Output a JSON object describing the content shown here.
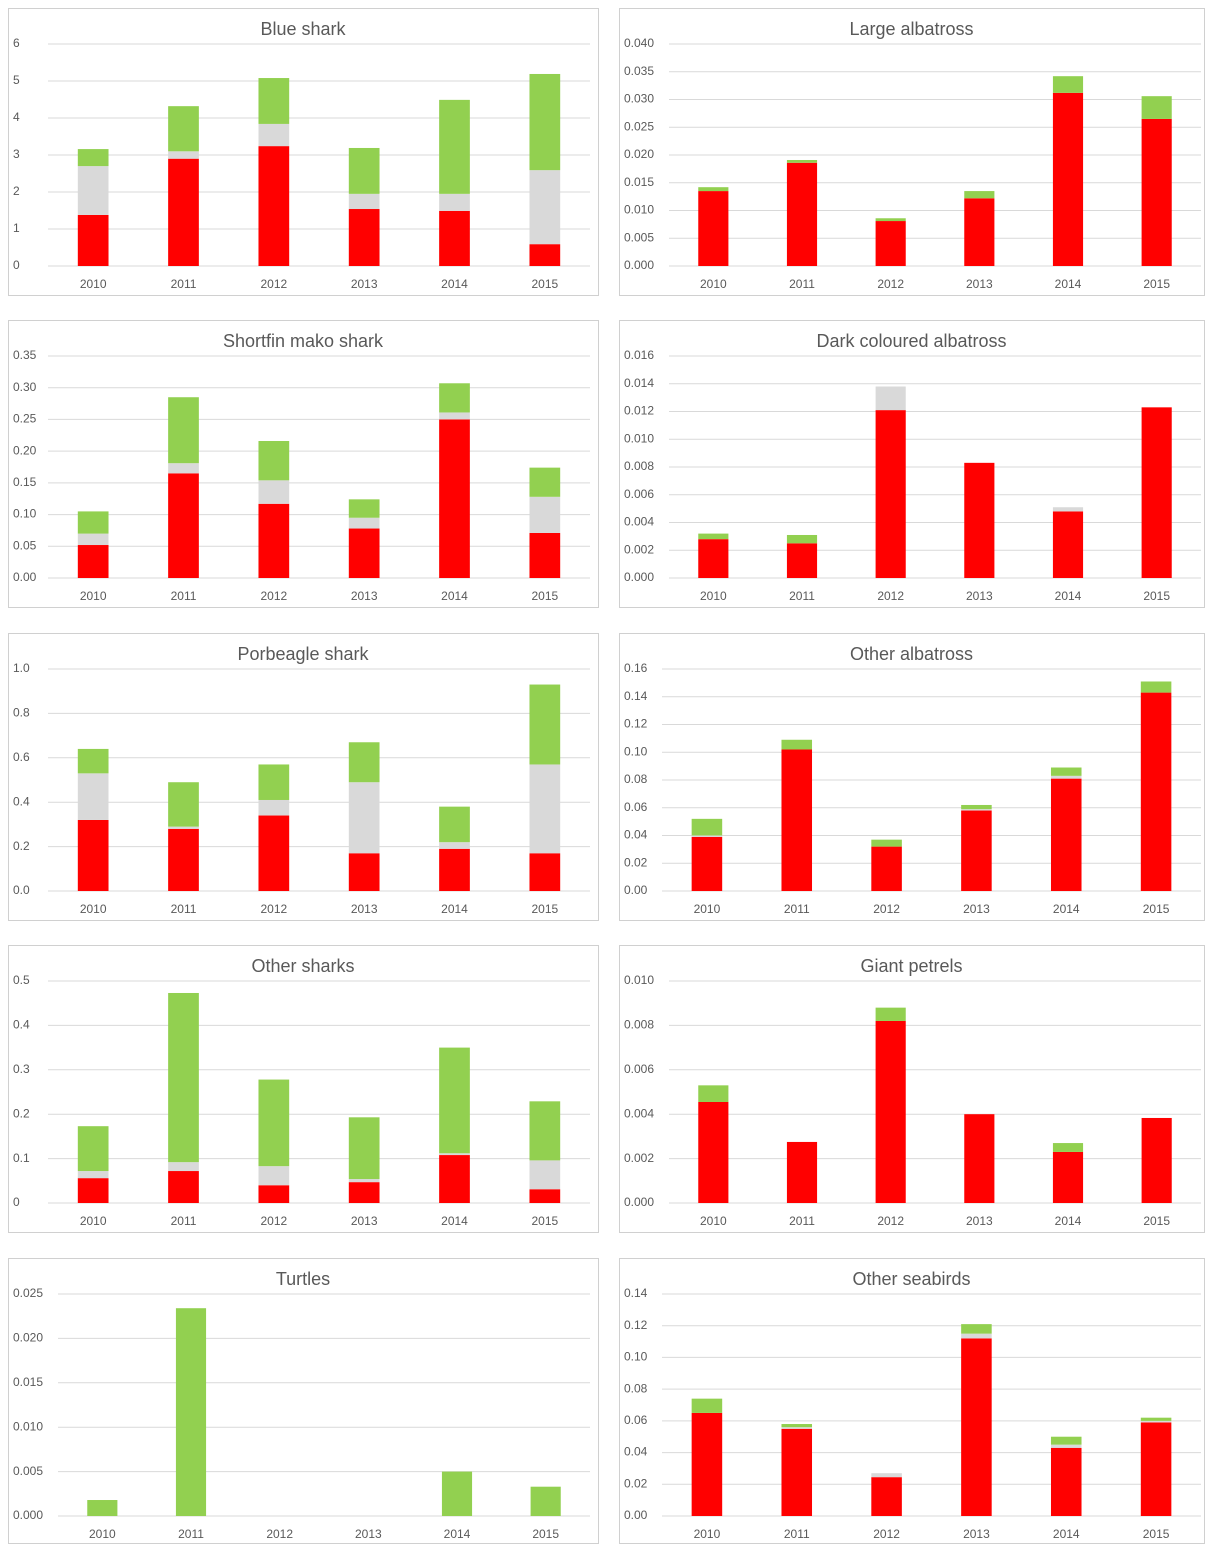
{
  "chart_data": [
    {
      "type": "bar",
      "title": "Blue shark",
      "categories": [
        "2010",
        "2011",
        "2012",
        "2013",
        "2014",
        "2015"
      ],
      "series": [
        {
          "color": "#ff0000",
          "values": [
            1.38,
            2.9,
            3.24,
            1.54,
            1.49,
            0.59
          ]
        },
        {
          "color": "#d9d9d9",
          "values": [
            1.32,
            0.2,
            0.6,
            0.41,
            0.46,
            2.0
          ]
        },
        {
          "color": "#92d050",
          "values": [
            0.46,
            1.22,
            1.24,
            1.24,
            2.54,
            2.6
          ]
        }
      ],
      "ylim": [
        0,
        6
      ],
      "yticks": [
        0,
        1,
        2,
        3,
        4,
        5,
        6
      ],
      "grid": true
    },
    {
      "type": "bar",
      "title": "Large albatross",
      "categories": [
        "2010",
        "2011",
        "2012",
        "2013",
        "2014",
        "2015"
      ],
      "series": [
        {
          "color": "#ff0000",
          "values": [
            0.0135,
            0.0186,
            0.0081,
            0.0122,
            0.0312,
            0.0265
          ]
        },
        {
          "color": "#d9d9d9",
          "values": [
            0,
            0,
            0,
            0,
            0,
            0
          ]
        },
        {
          "color": "#92d050",
          "values": [
            0.0007,
            0.0005,
            0.0005,
            0.0013,
            0.003,
            0.0041
          ]
        }
      ],
      "ylim": [
        0,
        0.04
      ],
      "yticks": [
        {
          "value": 0,
          "label": "0.000"
        },
        0.005,
        {
          "value": 0.01,
          "label": "0.010"
        },
        0.015,
        {
          "value": 0.02,
          "label": "0.020"
        },
        0.025,
        {
          "value": 0.03,
          "label": "0.030"
        },
        0.035,
        {
          "value": 0.04,
          "label": "0.040"
        }
      ],
      "grid": true
    },
    {
      "type": "bar",
      "title": "Shortfin mako shark",
      "categories": [
        "2010",
        "2011",
        "2012",
        "2013",
        "2014",
        "2015"
      ],
      "series": [
        {
          "color": "#ff0000",
          "values": [
            0.052,
            0.165,
            0.117,
            0.078,
            0.25,
            0.071
          ]
        },
        {
          "color": "#d9d9d9",
          "values": [
            0.018,
            0.016,
            0.037,
            0.017,
            0.011,
            0.057
          ]
        },
        {
          "color": "#92d050",
          "values": [
            0.035,
            0.104,
            0.062,
            0.029,
            0.046,
            0.046
          ]
        }
      ],
      "ylim": [
        0,
        0.35
      ],
      "yticks": [
        {
          "value": 0,
          "label": "0.00"
        },
        0.05,
        {
          "value": 0.1,
          "label": "0.10"
        },
        0.15,
        {
          "value": 0.2,
          "label": "0.20"
        },
        0.25,
        {
          "value": 0.3,
          "label": "0.30"
        },
        0.35
      ],
      "grid": true
    },
    {
      "type": "bar",
      "title": "Dark coloured albatross",
      "categories": [
        "2010",
        "2011",
        "2012",
        "2013",
        "2014",
        "2015"
      ],
      "series": [
        {
          "color": "#ff0000",
          "values": [
            0.0028,
            0.0025,
            0.0121,
            0.0083,
            0.0048,
            0.0123
          ]
        },
        {
          "color": "#d9d9d9",
          "values": [
            0,
            0,
            0.0017,
            0,
            0.0003,
            0
          ]
        },
        {
          "color": "#92d050",
          "values": [
            0.0004,
            0.0006,
            0,
            0,
            0,
            0
          ]
        }
      ],
      "ylim": [
        0,
        0.016
      ],
      "yticks": [
        {
          "value": 0,
          "label": "0.000"
        },
        0.002,
        0.004,
        0.006,
        0.008,
        {
          "value": 0.01,
          "label": "0.010"
        },
        0.012,
        0.014,
        0.016
      ],
      "grid": true
    },
    {
      "type": "bar",
      "title": "Porbeagle shark",
      "categories": [
        "2010",
        "2011",
        "2012",
        "2013",
        "2014",
        "2015"
      ],
      "series": [
        {
          "color": "#ff0000",
          "values": [
            0.32,
            0.28,
            0.34,
            0.17,
            0.19,
            0.17
          ]
        },
        {
          "color": "#d9d9d9",
          "values": [
            0.21,
            0.01,
            0.07,
            0.32,
            0.03,
            0.4
          ]
        },
        {
          "color": "#92d050",
          "values": [
            0.11,
            0.2,
            0.16,
            0.18,
            0.16,
            0.36
          ]
        }
      ],
      "ylim": [
        0,
        1
      ],
      "yticks": [
        {
          "value": 0,
          "label": "0.0"
        },
        0.2,
        0.4,
        0.6,
        0.8,
        {
          "value": 1,
          "label": "1.0"
        }
      ],
      "grid": true
    },
    {
      "type": "bar",
      "title": "Other albatross",
      "categories": [
        "2010",
        "2011",
        "2012",
        "2013",
        "2014",
        "2015"
      ],
      "series": [
        {
          "color": "#ff0000",
          "values": [
            0.039,
            0.102,
            0.032,
            0.058,
            0.081,
            0.143
          ]
        },
        {
          "color": "#d9d9d9",
          "values": [
            0.001,
            0,
            0,
            0.001,
            0.002,
            0
          ]
        },
        {
          "color": "#92d050",
          "values": [
            0.012,
            0.007,
            0.005,
            0.003,
            0.006,
            0.008
          ]
        }
      ],
      "ylim": [
        0,
        0.16
      ],
      "yticks": [
        {
          "value": 0,
          "label": "0.00"
        },
        0.02,
        0.04,
        0.06,
        0.08,
        {
          "value": 0.1,
          "label": "0.10"
        },
        0.12,
        0.14,
        0.16
      ],
      "grid": true
    },
    {
      "type": "bar",
      "title": "Other sharks",
      "categories": [
        "2010",
        "2011",
        "2012",
        "2013",
        "2014",
        "2015"
      ],
      "series": [
        {
          "color": "#ff0000",
          "values": [
            0.056,
            0.072,
            0.04,
            0.047,
            0.108,
            0.031
          ]
        },
        {
          "color": "#d9d9d9",
          "values": [
            0.016,
            0.02,
            0.043,
            0.007,
            0.004,
            0.065
          ]
        },
        {
          "color": "#92d050",
          "values": [
            0.101,
            0.381,
            0.195,
            0.139,
            0.238,
            0.133
          ]
        }
      ],
      "ylim": [
        0,
        0.5
      ],
      "yticks": [
        0,
        0.1,
        0.2,
        0.3,
        0.4,
        0.5
      ],
      "grid": true
    },
    {
      "type": "bar",
      "title": "Giant petrels",
      "categories": [
        "2010",
        "2011",
        "2012",
        "2013",
        "2014",
        "2015"
      ],
      "series": [
        {
          "color": "#ff0000",
          "values": [
            0.00455,
            0.00275,
            0.0082,
            0.004,
            0.0023,
            0.00383
          ]
        },
        {
          "color": "#d9d9d9",
          "values": [
            0,
            0,
            0,
            0,
            0,
            0
          ]
        },
        {
          "color": "#92d050",
          "values": [
            0.00075,
            0,
            0.0006,
            0,
            0.0004,
            0
          ]
        }
      ],
      "ylim": [
        0,
        0.01
      ],
      "yticks": [
        {
          "value": 0,
          "label": "0.000"
        },
        0.002,
        0.004,
        0.006,
        0.008,
        {
          "value": 0.01,
          "label": "0.010"
        }
      ],
      "grid": true
    },
    {
      "type": "bar",
      "title": "Turtles",
      "categories": [
        "2010",
        "2011",
        "2012",
        "2013",
        "2014",
        "2015"
      ],
      "series": [
        {
          "color": "#ff0000",
          "values": [
            0,
            0,
            0,
            0,
            0,
            0
          ]
        },
        {
          "color": "#d9d9d9",
          "values": [
            0,
            0,
            0,
            0,
            0,
            0
          ]
        },
        {
          "color": "#92d050",
          "values": [
            0.0018,
            0.0234,
            0,
            0,
            0.005,
            0.0033
          ]
        }
      ],
      "ylim": [
        0,
        0.025
      ],
      "yticks": [
        {
          "value": 0,
          "label": "0.000"
        },
        0.005,
        {
          "value": 0.01,
          "label": "0.010"
        },
        0.015,
        {
          "value": 0.02,
          "label": "0.020"
        },
        0.025
      ],
      "grid": true
    },
    {
      "type": "bar",
      "title": "Other seabirds",
      "categories": [
        "2010",
        "2011",
        "2012",
        "2013",
        "2014",
        "2015"
      ],
      "series": [
        {
          "color": "#ff0000",
          "values": [
            0.065,
            0.055,
            0.0245,
            0.112,
            0.043,
            0.059
          ]
        },
        {
          "color": "#d9d9d9",
          "values": [
            0,
            0.001,
            0.0025,
            0.003,
            0.002,
            0.001
          ]
        },
        {
          "color": "#92d050",
          "values": [
            0.009,
            0.002,
            0,
            0.006,
            0.005,
            0.002
          ]
        }
      ],
      "ylim": [
        0,
        0.14
      ],
      "yticks": [
        {
          "value": 0,
          "label": "0.00"
        },
        0.02,
        0.04,
        0.06,
        0.08,
        {
          "value": 0.1,
          "label": "0.10"
        },
        0.12,
        0.14
      ],
      "grid": true
    }
  ]
}
